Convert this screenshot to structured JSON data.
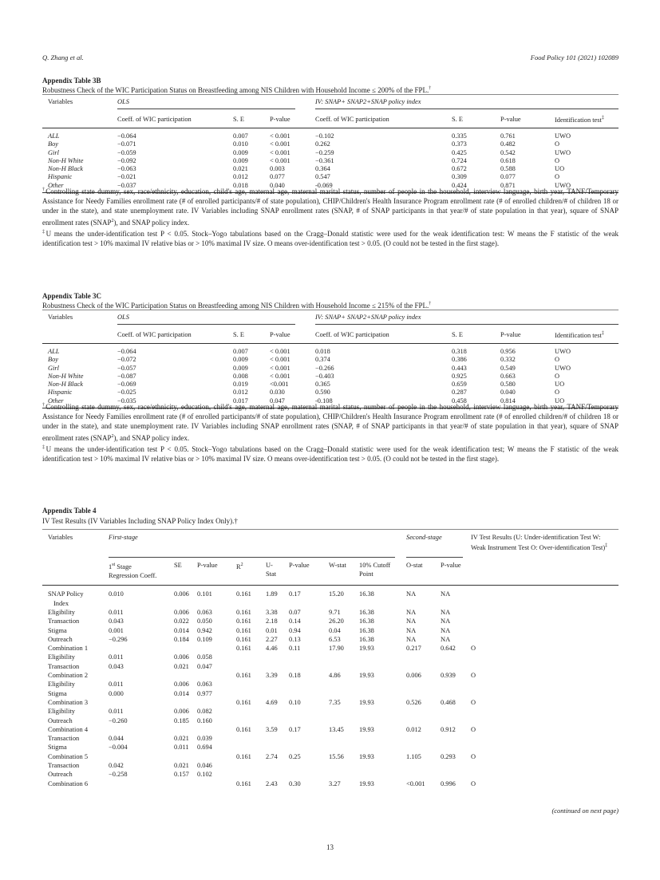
{
  "header": {
    "authors": "Q. Zhang et al.",
    "journal": "Food Policy 101 (2021) 102089"
  },
  "table3b": {
    "title": "Appendix Table 3B",
    "caption": "Robustness Check of the WIC Participation Status on Breastfeeding among NIS Children with Household Income ≤ 200% of the FPL.",
    "caption_mark": "†",
    "group_ols": "OLS",
    "group_iv": "IV: SNAP+ SNAP2+SNAP policy index",
    "columns": [
      "Variables",
      "Coeff. of WIC participation",
      "S. E",
      "P-value",
      "Coeff. of WIC participation",
      "S. E",
      "P-value",
      "Identification test"
    ],
    "ident_mark": "‡",
    "rows": [
      [
        "ALL",
        "−0.064",
        "0.007",
        "< 0.001",
        "−0.102",
        "0.335",
        "0.761",
        "UWO"
      ],
      [
        "Boy",
        "−0.071",
        "0.010",
        "< 0.001",
        "0.262",
        "0.373",
        "0.482",
        "O"
      ],
      [
        "Girl",
        "−0.059",
        "0.009",
        "< 0.001",
        "−0.259",
        "0.425",
        "0.542",
        "UWO"
      ],
      [
        "Non-H White",
        "−0.092",
        "0.009",
        "< 0.001",
        "−0.361",
        "0.724",
        "0.618",
        "O"
      ],
      [
        "Non-H Black",
        "−0.063",
        "0.021",
        "0.003",
        "0.364",
        "0.672",
        "0.588",
        "UO"
      ],
      [
        "Hispanic",
        "−0.021",
        "0.012",
        "0.077",
        "0.547",
        "0.309",
        "0.077",
        "O"
      ],
      [
        "Other",
        "−0.037",
        "0.018",
        "0.040",
        "-0.069",
        "0.424",
        "0.871",
        "UWO"
      ]
    ],
    "fn1_mark": "†",
    "fn1_a": "Controlling state dummy, sex, race/ethnicity, education, child's age, maternal age, maternal marital status, number of people in the household, interview language, birth year, TANF/Temporary Assistance for Needy Families enrollment rate (# of enrolled participants/# of state population), CHIP/Children's Health Insurance Program enrollment rate (# of enrolled children/# of children 18 or under in the state), and state unemployment rate. IV Variables including SNAP enrollment rates (SNAP, # of SNAP participants in that year/# of state population in that year), square of SNAP enrollment rates (SNAP",
    "fn1_sup": "2",
    "fn1_b": "), and SNAP policy index.",
    "fn2_mark": "‡",
    "fn2": "U means the under-identification test P < 0.05. Stock–Yogo tabulations based on the Cragg–Donald statistic were used for the weak identification test: W means the F statistic of the weak identification test > 10% maximal IV relative bias or > 10% maximal IV size. O means over-identification test > 0.05. (O could not be tested in the first stage)."
  },
  "table3c": {
    "title": "Appendix Table 3C",
    "caption": "Robustness Check of the WIC Participation Status on Breastfeeding among NIS Children with Household Income ≤ 215% of the FPL.",
    "caption_mark": "†",
    "group_ols": "OLS",
    "group_iv": "IV: SNAP+ SNAP2+SNAP policy index",
    "columns": [
      "Variables",
      "Coeff. of WIC participation",
      "S. E",
      "P-value",
      "Coeff. of WIC participation",
      "S. E",
      "P-value",
      "Identification test"
    ],
    "ident_mark": "‡",
    "rows": [
      [
        "ALL",
        "−0.064",
        "0.007",
        "< 0.001",
        "0.018",
        "0.318",
        "0.956",
        "UWO"
      ],
      [
        "Boy",
        "−0.072",
        "0.009",
        "< 0.001",
        "0.374",
        "0.386",
        "0.332",
        "O"
      ],
      [
        "Girl",
        "−0.057",
        "0.009",
        "< 0.001",
        "−0.266",
        "0.443",
        "0.549",
        "UWO"
      ],
      [
        "Non-H White",
        "−0.087",
        "0.008",
        "< 0.001",
        "−0.403",
        "0.925",
        "0.663",
        "O"
      ],
      [
        "Non-H Black",
        "−0.069",
        "0.019",
        "<0.001",
        "0.365",
        "0.659",
        "0.580",
        "UO"
      ],
      [
        "Hispanic",
        "−0.025",
        "0.012",
        "0.030",
        "0.590",
        "0.287",
        "0.040",
        "O"
      ],
      [
        "Other",
        "−0.035",
        "0.017",
        "0.047",
        "-0.108",
        "0.458",
        "0.814",
        "UO"
      ]
    ],
    "fn1_mark": "†",
    "fn1_a": "Controlling state dummy, sex, race/ethnicity, education, child's age, maternal age, maternal marital status, number of people in the household, interview language, birth year, TANF/Temporary Assistance for Needy Families enrollment rate (# of enrolled participants/# of state population), CHIP/Children's Health Insurance Program enrollment rate (# of enrolled children/# of children 18 or under in the state), and state unemployment rate. IV Variables including SNAP enrollment rates (SNAP, # of SNAP participants in that year/# of state population in that year), square of SNAP enrollment rates (SNAP",
    "fn1_sup": "2",
    "fn1_b": "), and SNAP policy index.",
    "fn2_mark": "‡",
    "fn2": "U means the under-identification test P < 0.05. Stock–Yogo tabulations based on the Cragg–Donald statistic were used for the weak identification test; W means the F statistic of the weak identification test > 10% maximal IV relative bias or > 10% maximal IV size. O means over-identification test > 0.05. (O could not be tested in the first stage)."
  },
  "table4": {
    "title": "Appendix Table 4",
    "caption": "IV Test Results (IV Variables Including SNAP Policy Index Only).†",
    "col_variables": "Variables",
    "group_first": "First-stage",
    "group_second": "Second-stage",
    "col_ivtest": "IV Test Results (U: Under-identification Test W: Weak Instrument Test O: Over-identification Test)",
    "ivtest_mark": "‡",
    "coeff_pre": "1",
    "coeff_sup": "st",
    "coeff_post": " Stage Regression Coeff.",
    "r2_pre": "R",
    "r2_sup": "2",
    "columns": [
      "SE",
      "P-value",
      "U-Stat",
      "P-value",
      "W-stat",
      "10% Cutoff Point",
      "O-stat",
      "P-value"
    ],
    "rows": [
      [
        "SNAP Policy Index",
        "0.010",
        "0.006",
        "0.101",
        "0.161",
        "1.89",
        "0.17",
        "15.20",
        "16.38",
        "NA",
        "NA",
        ""
      ],
      [
        "Eligibility",
        "0.011",
        "0.006",
        "0.063",
        "0.161",
        "3.38",
        "0.07",
        "9.71",
        "16.38",
        "NA",
        "NA",
        ""
      ],
      [
        "Transaction",
        "0.043",
        "0.022",
        "0.050",
        "0.161",
        "2.18",
        "0.14",
        "26.20",
        "16.38",
        "NA",
        "NA",
        ""
      ],
      [
        "Stigma",
        "0.001",
        "0.014",
        "0.942",
        "0.161",
        "0.01",
        "0.94",
        "0.04",
        "16.38",
        "NA",
        "NA",
        ""
      ],
      [
        "Outreach",
        "−0.296",
        "0.184",
        "0.109",
        "0.161",
        "2.27",
        "0.13",
        "6.53",
        "16.38",
        "NA",
        "NA",
        ""
      ],
      [
        "Combination 1",
        "",
        "",
        "",
        "0.161",
        "4.46",
        "0.11",
        "17.90",
        "19.93",
        "0.217",
        "0.642",
        "O"
      ],
      [
        "Eligibility",
        "0.011",
        "0.006",
        "0.058",
        "",
        "",
        "",
        "",
        "",
        "",
        "",
        ""
      ],
      [
        "Transaction",
        "0.043",
        "0.021",
        "0.047",
        "",
        "",
        "",
        "",
        "",
        "",
        "",
        ""
      ],
      [
        "Combination 2",
        "",
        "",
        "",
        "0.161",
        "3.39",
        "0.18",
        "4.86",
        "19.93",
        "0.006",
        "0.939",
        "O"
      ],
      [
        "Eligibility",
        "0.011",
        "0.006",
        "0.063",
        "",
        "",
        "",
        "",
        "",
        "",
        "",
        ""
      ],
      [
        "Stigma",
        "0.000",
        "0.014",
        "0.977",
        "",
        "",
        "",
        "",
        "",
        "",
        "",
        ""
      ],
      [
        "Combination 3",
        "",
        "",
        "",
        "0.161",
        "4.69",
        "0.10",
        "7.35",
        "19.93",
        "0.526",
        "0.468",
        "O"
      ],
      [
        "Eligibility",
        "0.011",
        "0.006",
        "0.082",
        "",
        "",
        "",
        "",
        "",
        "",
        "",
        ""
      ],
      [
        "Outreach",
        "−0.260",
        "0.185",
        "0.160",
        "",
        "",
        "",
        "",
        "",
        "",
        "",
        ""
      ],
      [
        "Combination 4",
        "",
        "",
        "",
        "0.161",
        "3.59",
        "0.17",
        "13.45",
        "19.93",
        "0.012",
        "0.912",
        "O"
      ],
      [
        "Transaction",
        "0.044",
        "0.021",
        "0.039",
        "",
        "",
        "",
        "",
        "",
        "",
        "",
        ""
      ],
      [
        "Stigma",
        "−0.004",
        "0.011",
        "0.694",
        "",
        "",
        "",
        "",
        "",
        "",
        "",
        ""
      ],
      [
        "Combination 5",
        "",
        "",
        "",
        "0.161",
        "2.74",
        "0.25",
        "15.56",
        "19.93",
        "1.105",
        "0.293",
        "O"
      ],
      [
        "Transaction",
        "0.042",
        "0.021",
        "0.046",
        "",
        "",
        "",
        "",
        "",
        "",
        "",
        ""
      ],
      [
        "Outreach",
        "−0.258",
        "0.157",
        "0.102",
        "",
        "",
        "",
        "",
        "",
        "",
        "",
        ""
      ],
      [
        "Combination 6",
        "",
        "",
        "",
        "0.161",
        "2.43",
        "0.30",
        "3.27",
        "19.93",
        "<0.001",
        "0.996",
        "O"
      ]
    ],
    "continued": "(continued on next page)"
  },
  "page_number": "13"
}
